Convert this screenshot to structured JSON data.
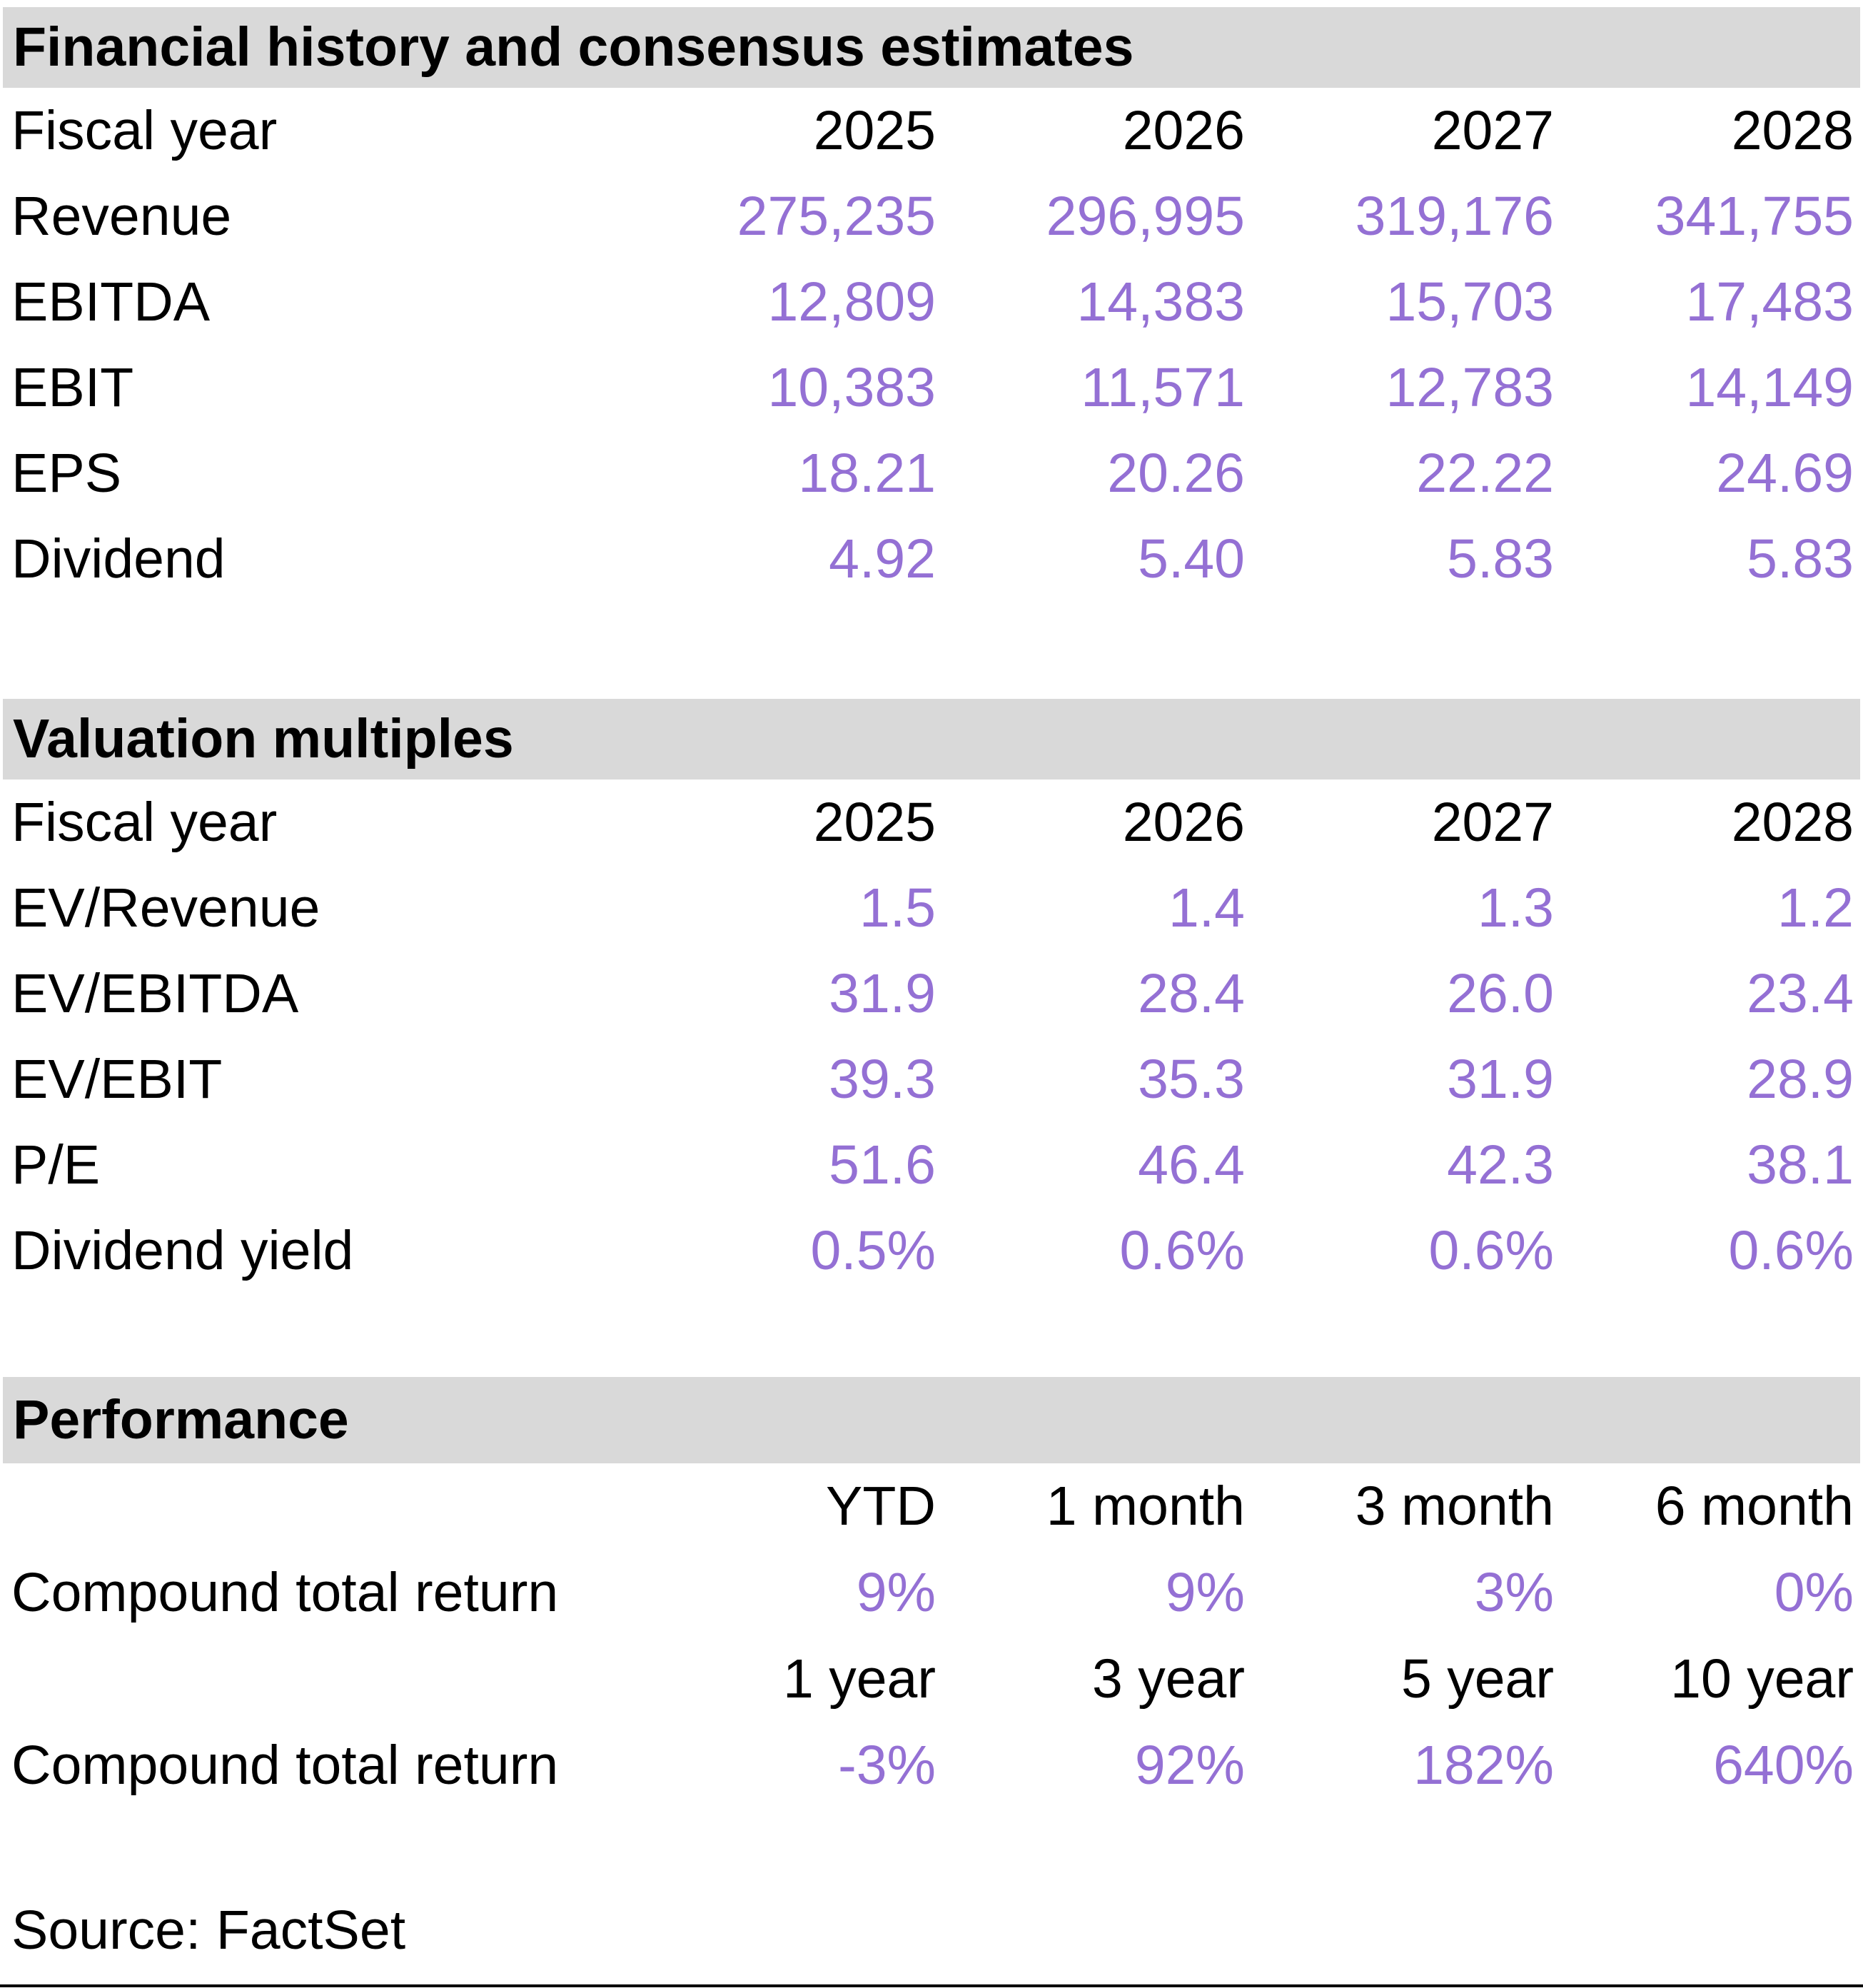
{
  "colors": {
    "accent": "#9470D4",
    "band_bg": "#D9D9D9",
    "text": "#000000"
  },
  "sections": {
    "financial": {
      "title": "Financial history and consensus estimates",
      "header_label": "Fiscal year",
      "years": [
        "2025",
        "2026",
        "2027",
        "2028"
      ],
      "rows": [
        {
          "label": "Revenue",
          "values": [
            "275,235",
            "296,995",
            "319,176",
            "341,755"
          ]
        },
        {
          "label": "EBITDA",
          "values": [
            "12,809",
            "14,383",
            "15,703",
            "17,483"
          ]
        },
        {
          "label": "EBIT",
          "values": [
            "10,383",
            "11,571",
            "12,783",
            "14,149"
          ]
        },
        {
          "label": "EPS",
          "values": [
            "18.21",
            "20.26",
            "22.22",
            "24.69"
          ]
        },
        {
          "label": "Dividend",
          "values": [
            "4.92",
            "5.40",
            "5.83",
            "5.83"
          ]
        }
      ]
    },
    "valuation": {
      "title": "Valuation multiples",
      "header_label": "Fiscal year",
      "years": [
        "2025",
        "2026",
        "2027",
        "2028"
      ],
      "rows": [
        {
          "label": "EV/Revenue",
          "values": [
            "1.5",
            "1.4",
            "1.3",
            "1.2"
          ]
        },
        {
          "label": "EV/EBITDA",
          "values": [
            "31.9",
            "28.4",
            "26.0",
            "23.4"
          ]
        },
        {
          "label": "EV/EBIT",
          "values": [
            "39.3",
            "35.3",
            "31.9",
            "28.9"
          ]
        },
        {
          "label": "P/E",
          "values": [
            "51.6",
            "46.4",
            "42.3",
            "38.1"
          ]
        },
        {
          "label": "Dividend yield",
          "values": [
            "0.5%",
            "0.6%",
            "0.6%",
            "0.6%"
          ]
        }
      ]
    },
    "performance": {
      "title": "Performance",
      "groups": [
        {
          "headers": [
            "YTD",
            "1 month",
            "3 month",
            "6 month"
          ],
          "row_label": "Compound total return",
          "values": [
            "9%",
            "9%",
            "3%",
            "0%"
          ]
        },
        {
          "headers": [
            "1 year",
            "3 year",
            "5 year",
            "10 year"
          ],
          "row_label": "Compound total return",
          "values": [
            "-3%",
            "92%",
            "182%",
            "640%"
          ]
        }
      ]
    }
  },
  "footer": {
    "source": "Source: FactSet"
  }
}
